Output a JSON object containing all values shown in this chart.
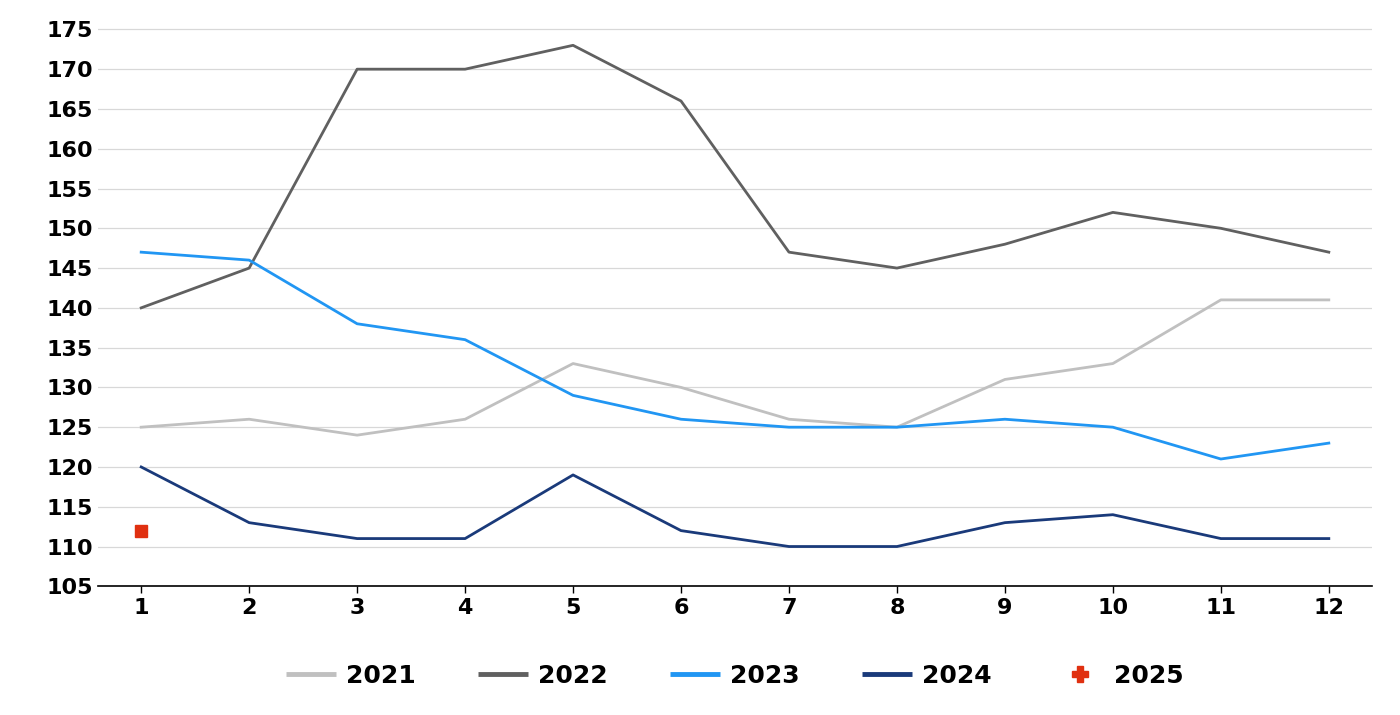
{
  "months": [
    1,
    2,
    3,
    4,
    5,
    6,
    7,
    8,
    9,
    10,
    11,
    12
  ],
  "series": {
    "2021": {
      "values": [
        125,
        126,
        124,
        126,
        133,
        130,
        126,
        125,
        131,
        133,
        141,
        141
      ],
      "color": "#c0c0c0",
      "linewidth": 2.0,
      "marker": null
    },
    "2022": {
      "values": [
        140,
        145,
        170,
        170,
        173,
        166,
        147,
        145,
        148,
        152,
        150,
        147
      ],
      "color": "#606060",
      "linewidth": 2.0,
      "marker": null
    },
    "2023": {
      "values": [
        147,
        146,
        138,
        136,
        129,
        126,
        125,
        125,
        126,
        125,
        121,
        123
      ],
      "color": "#2196F3",
      "linewidth": 2.0,
      "marker": null
    },
    "2024": {
      "values": [
        120,
        113,
        111,
        111,
        119,
        112,
        110,
        110,
        113,
        114,
        111,
        111
      ],
      "color": "#1a3a7a",
      "linewidth": 2.0,
      "marker": null
    },
    "2025": {
      "values": [
        112,
        null,
        null,
        null,
        null,
        null,
        null,
        null,
        null,
        null,
        null,
        null
      ],
      "color": "#e03010",
      "linewidth": 2.0,
      "marker": "s",
      "markersize": 9
    }
  },
  "xlim": [
    0.6,
    12.4
  ],
  "ylim": [
    105,
    176
  ],
  "yticks": [
    110,
    115,
    120,
    125,
    130,
    135,
    140,
    145,
    150,
    155,
    160,
    165,
    170,
    175
  ],
  "ytick_labels": [
    "110",
    "115",
    "120",
    "125",
    "130",
    "135",
    "140",
    "145",
    "150",
    "155",
    "160",
    "165",
    "170",
    "175"
  ],
  "yticks_with_105": [
    105,
    110,
    115,
    120,
    125,
    130,
    135,
    140,
    145,
    150,
    155,
    160,
    165,
    170,
    175
  ],
  "xticks": [
    1,
    2,
    3,
    4,
    5,
    6,
    7,
    8,
    9,
    10,
    11,
    12
  ],
  "background_color": "#ffffff",
  "grid_color": "#d8d8d8",
  "legend_order": [
    "2021",
    "2022",
    "2023",
    "2024",
    "2025"
  ],
  "legend_colors": {
    "2021": "#c0c0c0",
    "2022": "#606060",
    "2023": "#2196F3",
    "2024": "#1a3a7a",
    "2025": "#e03010"
  },
  "tick_fontsize": 16,
  "legend_fontsize": 18
}
